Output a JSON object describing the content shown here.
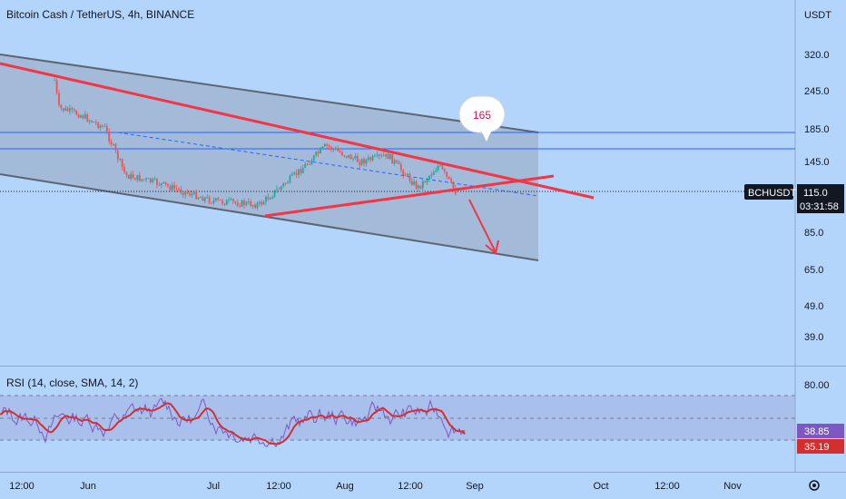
{
  "header": {
    "title": "Bitcoin Cash / TetherUS, 4h, BINANCE"
  },
  "chart_data": [
    {
      "type": "candlestick",
      "title": "Bitcoin Cash / TetherUS, 4h, BINANCE",
      "currency": "USDT",
      "symbol": "BCHUSDT",
      "last_price": "115.0",
      "countdown": "03:31:58",
      "y_scale": "log",
      "y_ticks": [
        "320.0",
        "245.0",
        "185.0",
        "145.0",
        "115.0",
        "85.0",
        "65.0",
        "49.0",
        "39.0"
      ],
      "x_ticks": [
        "12:00",
        "Jun",
        "Jul",
        "12:00",
        "Aug",
        "12:00",
        "Sep",
        "Oct",
        "12:00",
        "Nov"
      ],
      "approx_close_path": [
        {
          "t": "May 24",
          "price": 265
        },
        {
          "t": "May 25",
          "price": 215
        },
        {
          "t": "May 30",
          "price": 205
        },
        {
          "t": "Jun 05",
          "price": 185
        },
        {
          "t": "Jun 10",
          "price": 130
        },
        {
          "t": "Jun 18",
          "price": 122
        },
        {
          "t": "Jul 01",
          "price": 107
        },
        {
          "t": "Jul 12",
          "price": 104
        },
        {
          "t": "Jul 20",
          "price": 128
        },
        {
          "t": "Jul 28",
          "price": 162
        },
        {
          "t": "Aug 05",
          "price": 144
        },
        {
          "t": "Aug 12",
          "price": 150
        },
        {
          "t": "Aug 19",
          "price": 118
        },
        {
          "t": "Aug 24",
          "price": 140
        },
        {
          "t": "Aug 28",
          "price": 115
        }
      ],
      "annotations": {
        "callout": "165",
        "horizontal_levels": [
          185,
          165
        ],
        "current_price_line": 115,
        "channel": "descending parallel channel",
        "triangle": "red converging trendlines",
        "arrow": "projected move down toward ~75"
      },
      "colors": {
        "up": "#26a69a",
        "down": "#ef5350",
        "trendline": "#f23645",
        "channel_fill": "#9fb0c8",
        "price_label_bg": "#131722"
      }
    },
    {
      "type": "line",
      "title": "RSI (14, close, SMA, 14, 2)",
      "y_ticks": [
        "80.00"
      ],
      "levels": [
        70,
        50,
        30
      ],
      "series": [
        {
          "name": "RSI",
          "last": "38.85",
          "color": "#7e57c2"
        },
        {
          "name": "RSI-based MA",
          "last": "35.19",
          "color": "#d32f2f"
        }
      ]
    }
  ]
}
